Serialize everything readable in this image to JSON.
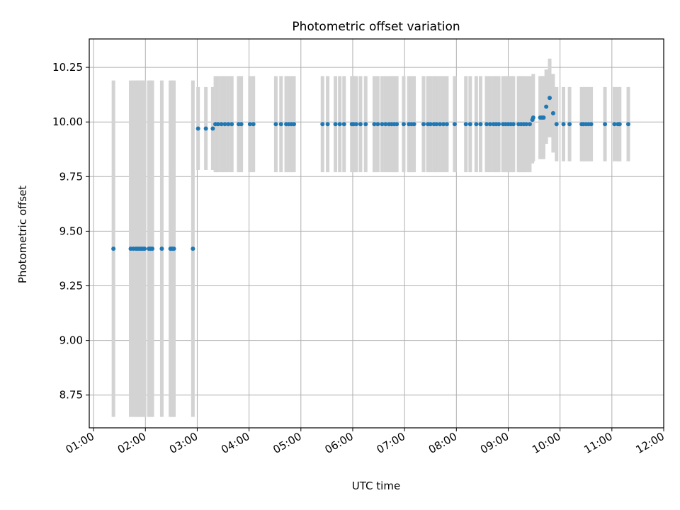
{
  "chart_data": {
    "type": "scatter",
    "title": "Photometric offset variation",
    "xlabel": "UTC time",
    "ylabel": "Photometric offset",
    "xlim": [
      "00:55",
      "12:00"
    ],
    "ylim": [
      8.6,
      10.38
    ],
    "grid": true,
    "x_ticks": [
      "01:00",
      "02:00",
      "03:00",
      "04:00",
      "05:00",
      "06:00",
      "07:00",
      "08:00",
      "09:00",
      "10:00",
      "11:00",
      "12:00"
    ],
    "y_ticks": [
      "8.75",
      "9.00",
      "9.25",
      "9.50",
      "9.75",
      "10.00",
      "10.25"
    ],
    "marker_color": "#1f77b4",
    "errorbar_color": "#d3d3d3",
    "series": [
      {
        "x": [
          "01:23",
          "01:43",
          "01:46",
          "01:49",
          "01:51",
          "01:53",
          "01:55",
          "01:57",
          "01:59",
          "02:04",
          "02:06",
          "02:08",
          "02:19",
          "02:29",
          "02:31",
          "02:33",
          "02:55"
        ],
        "y": [
          9.42,
          9.42,
          9.42,
          9.42,
          9.42,
          9.42,
          9.42,
          9.42,
          9.42,
          9.42,
          9.42,
          9.42,
          9.42,
          9.42,
          9.42,
          9.42,
          9.42
        ],
        "yerr": [
          0.77,
          0.77,
          0.77,
          0.77,
          0.77,
          0.77,
          0.77,
          0.77,
          0.77,
          0.77,
          0.77,
          0.77,
          0.77,
          0.77,
          0.77,
          0.77,
          0.77
        ]
      },
      {
        "x": [
          "03:01",
          "03:10",
          "03:18"
        ],
        "y": [
          9.97,
          9.97,
          9.97
        ],
        "yerr": [
          0.19,
          0.19,
          0.19
        ]
      },
      {
        "x": [
          "03:21",
          "03:24",
          "03:28",
          "03:32",
          "03:36",
          "03:40",
          "03:48",
          "03:51",
          "04:01",
          "04:05",
          "04:31",
          "04:37",
          "04:43",
          "04:46",
          "04:49",
          "04:52",
          "05:25",
          "05:31",
          "05:40",
          "05:45",
          "05:50",
          "05:59",
          "06:01",
          "06:04",
          "06:09",
          "06:15",
          "06:25",
          "06:29",
          "06:34",
          "06:38",
          "06:42",
          "06:45",
          "06:48",
          "06:51",
          "06:59",
          "07:05",
          "07:08",
          "07:11",
          "07:22",
          "07:27",
          "07:30",
          "07:34",
          "07:37",
          "07:41",
          "07:45",
          "07:49",
          "07:58",
          "08:11",
          "08:16",
          "08:23",
          "08:28",
          "08:35",
          "08:39",
          "08:43",
          "08:46",
          "08:49",
          "08:54",
          "08:57",
          "09:00",
          "09:03",
          "09:06",
          "09:12",
          "09:15",
          "09:18",
          "09:21",
          "09:25"
        ],
        "y": [
          9.99,
          9.99,
          9.99,
          9.99,
          9.99,
          9.99,
          9.99,
          9.99,
          9.99,
          9.99,
          9.99,
          9.99,
          9.99,
          9.99,
          9.99,
          9.99,
          9.99,
          9.99,
          9.99,
          9.99,
          9.99,
          9.99,
          9.99,
          9.99,
          9.99,
          9.99,
          9.99,
          9.99,
          9.99,
          9.99,
          9.99,
          9.99,
          9.99,
          9.99,
          9.99,
          9.99,
          9.99,
          9.99,
          9.99,
          9.99,
          9.99,
          9.99,
          9.99,
          9.99,
          9.99,
          9.99,
          9.99,
          9.99,
          9.99,
          9.99,
          9.99,
          9.99,
          9.99,
          9.99,
          9.99,
          9.99,
          9.99,
          9.99,
          9.99,
          9.99,
          9.99,
          9.99,
          9.99,
          9.99,
          9.99,
          9.99
        ],
        "yerr": [
          0.22,
          0.22,
          0.22,
          0.22,
          0.22,
          0.22,
          0.22,
          0.22,
          0.22,
          0.22,
          0.22,
          0.22,
          0.22,
          0.22,
          0.22,
          0.22,
          0.22,
          0.22,
          0.22,
          0.22,
          0.22,
          0.22,
          0.22,
          0.22,
          0.22,
          0.22,
          0.22,
          0.22,
          0.22,
          0.22,
          0.22,
          0.22,
          0.22,
          0.22,
          0.22,
          0.22,
          0.22,
          0.22,
          0.22,
          0.22,
          0.22,
          0.22,
          0.22,
          0.22,
          0.22,
          0.22,
          0.22,
          0.22,
          0.22,
          0.22,
          0.22,
          0.22,
          0.22,
          0.22,
          0.22,
          0.22,
          0.22,
          0.22,
          0.22,
          0.22,
          0.22,
          0.22,
          0.22,
          0.22,
          0.22,
          0.22
        ]
      },
      {
        "x": [
          "09:28",
          "09:29",
          "09:37",
          "09:39",
          "09:41",
          "09:44",
          "09:48",
          "09:52",
          "09:56",
          "10:04",
          "10:11",
          "10:25",
          "10:27",
          "10:30",
          "10:33",
          "10:36",
          "10:52",
          "11:03",
          "11:07",
          "11:09",
          "11:19"
        ],
        "y": [
          10.01,
          10.02,
          10.02,
          10.02,
          10.02,
          10.07,
          10.11,
          10.04,
          9.99,
          9.99,
          9.99,
          9.99,
          9.99,
          9.99,
          9.99,
          9.99,
          9.99,
          9.99,
          9.99,
          9.99,
          9.99
        ],
        "yerr": [
          0.2,
          0.2,
          0.19,
          0.19,
          0.19,
          0.17,
          0.18,
          0.18,
          0.17,
          0.17,
          0.17,
          0.17,
          0.17,
          0.17,
          0.17,
          0.17,
          0.17,
          0.17,
          0.17,
          0.17,
          0.17
        ]
      }
    ]
  }
}
